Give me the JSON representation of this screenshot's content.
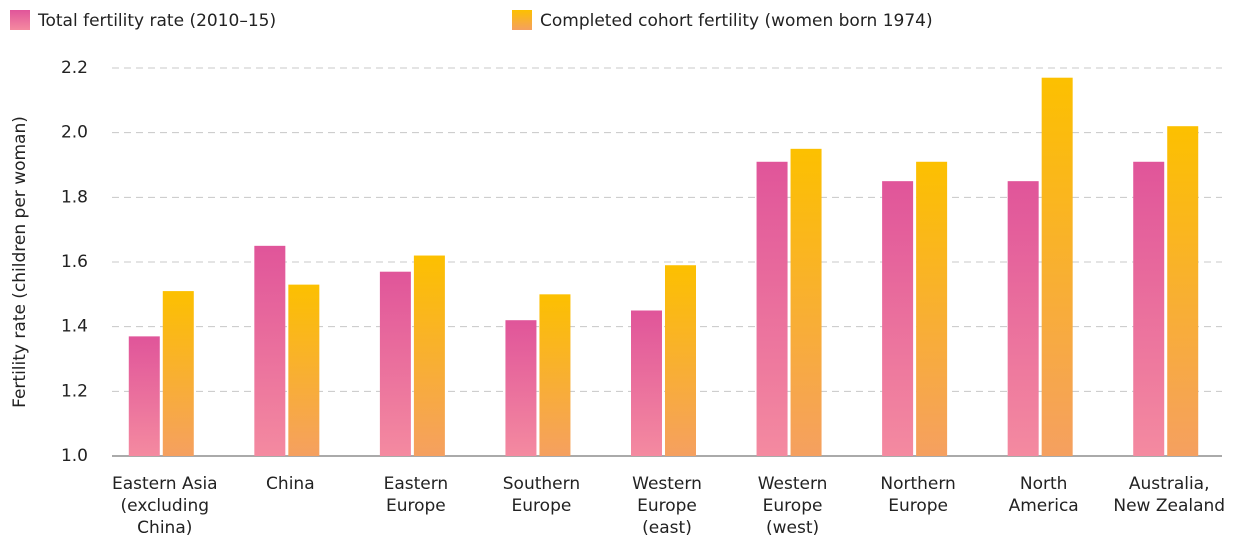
{
  "chart_data": {
    "type": "bar",
    "categories": [
      "Eastern Asia\n(excluding\nChina)",
      "China",
      "Eastern\nEurope",
      "Southern\nEurope",
      "Western\nEurope\n(east)",
      "Western\nEurope\n(west)",
      "Northern\nEurope",
      "North\nAmerica",
      "Australia,\nNew Zealand"
    ],
    "series": [
      {
        "name": "Total fertility rate (2010–15)",
        "color": "#e0559a",
        "values": [
          1.37,
          1.65,
          1.57,
          1.42,
          1.45,
          1.91,
          1.85,
          1.85,
          1.91
        ]
      },
      {
        "name": "Completed cohort fertility (women born 1974)",
        "color": "#fcc000",
        "values": [
          1.51,
          1.53,
          1.62,
          1.5,
          1.59,
          1.95,
          1.91,
          2.17,
          2.02
        ]
      }
    ],
    "ylabel": "Fertility rate (children per woman)",
    "ylim": [
      1.0,
      2.2
    ],
    "yticks": [
      {
        "value": 1.0,
        "label": "1.0"
      },
      {
        "value": 1.2,
        "label": "1.2"
      },
      {
        "value": 1.4,
        "label": "1.4"
      },
      {
        "value": 1.6,
        "label": "1.6"
      },
      {
        "value": 1.8,
        "label": "1.8"
      },
      {
        "value": 2.0,
        "label": "2.0"
      },
      {
        "value": 2.2,
        "label": "2.2"
      }
    ],
    "grid": true,
    "legend": "top"
  }
}
